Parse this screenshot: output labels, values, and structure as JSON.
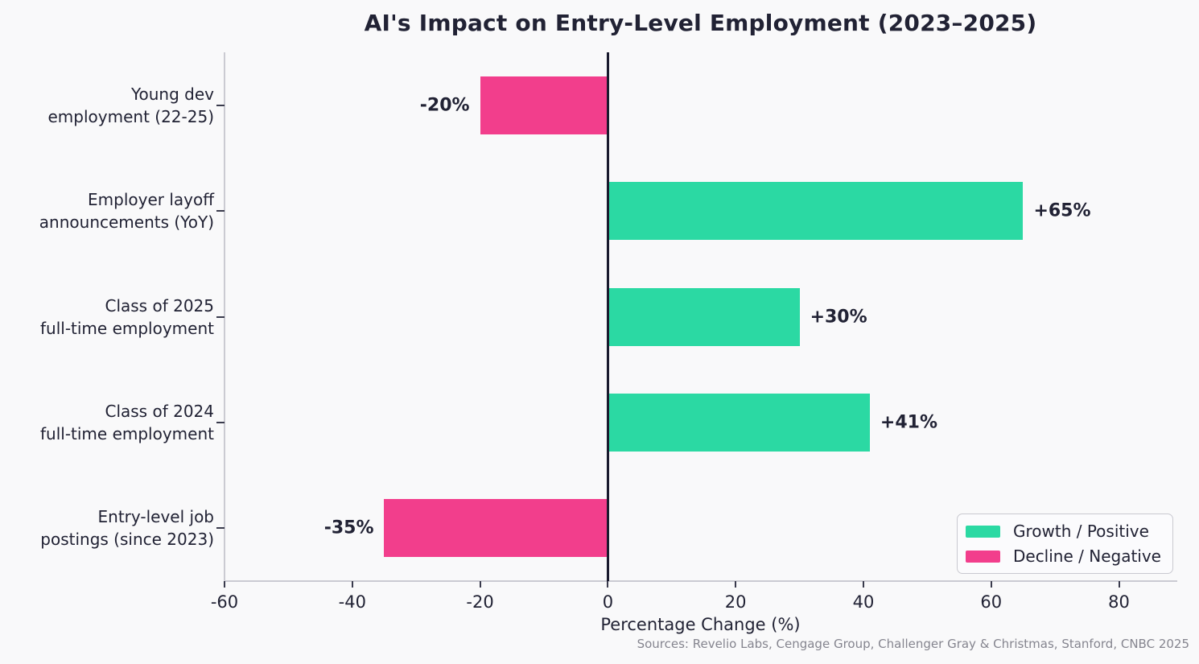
{
  "chart_data": {
    "type": "bar",
    "orientation": "horizontal",
    "title": "AI's Impact on Entry-Level Employment (2023–2025)",
    "xlabel": "Percentage Change (%)",
    "source": "Sources: Revelio Labs, Cengage Group, Challenger Gray & Christmas, Stanford, CNBC 2025",
    "categories": [
      [
        "Young dev",
        "employment (22-25)"
      ],
      [
        "Employer layoff",
        "announcements (YoY)"
      ],
      [
        "Class of 2025",
        "full-time employment"
      ],
      [
        "Class of 2024",
        "full-time employment"
      ],
      [
        "Entry-level job",
        "postings (since 2023)"
      ]
    ],
    "values": [
      -20,
      65,
      30,
      41,
      -35
    ],
    "value_labels": [
      "-20%",
      "+65%",
      "+30%",
      "+41%",
      "-35%"
    ],
    "xlim": [
      -60,
      89
    ],
    "xticks": [
      -60,
      -40,
      -20,
      0,
      20,
      40,
      60,
      80
    ],
    "grid": false,
    "legend": {
      "position": "lower right",
      "entries": [
        {
          "label": "Growth / Positive",
          "color_key": "positive"
        },
        {
          "label": "Decline / Negative",
          "color_key": "negative"
        }
      ]
    },
    "colors": {
      "positive": "#2bd9a3",
      "negative": "#f23e8c",
      "zero_line": "#191a2e",
      "text": "#212234",
      "muted_text": "#85858f",
      "spine": "#cbcbd2",
      "background": "#f9f9fa"
    }
  }
}
